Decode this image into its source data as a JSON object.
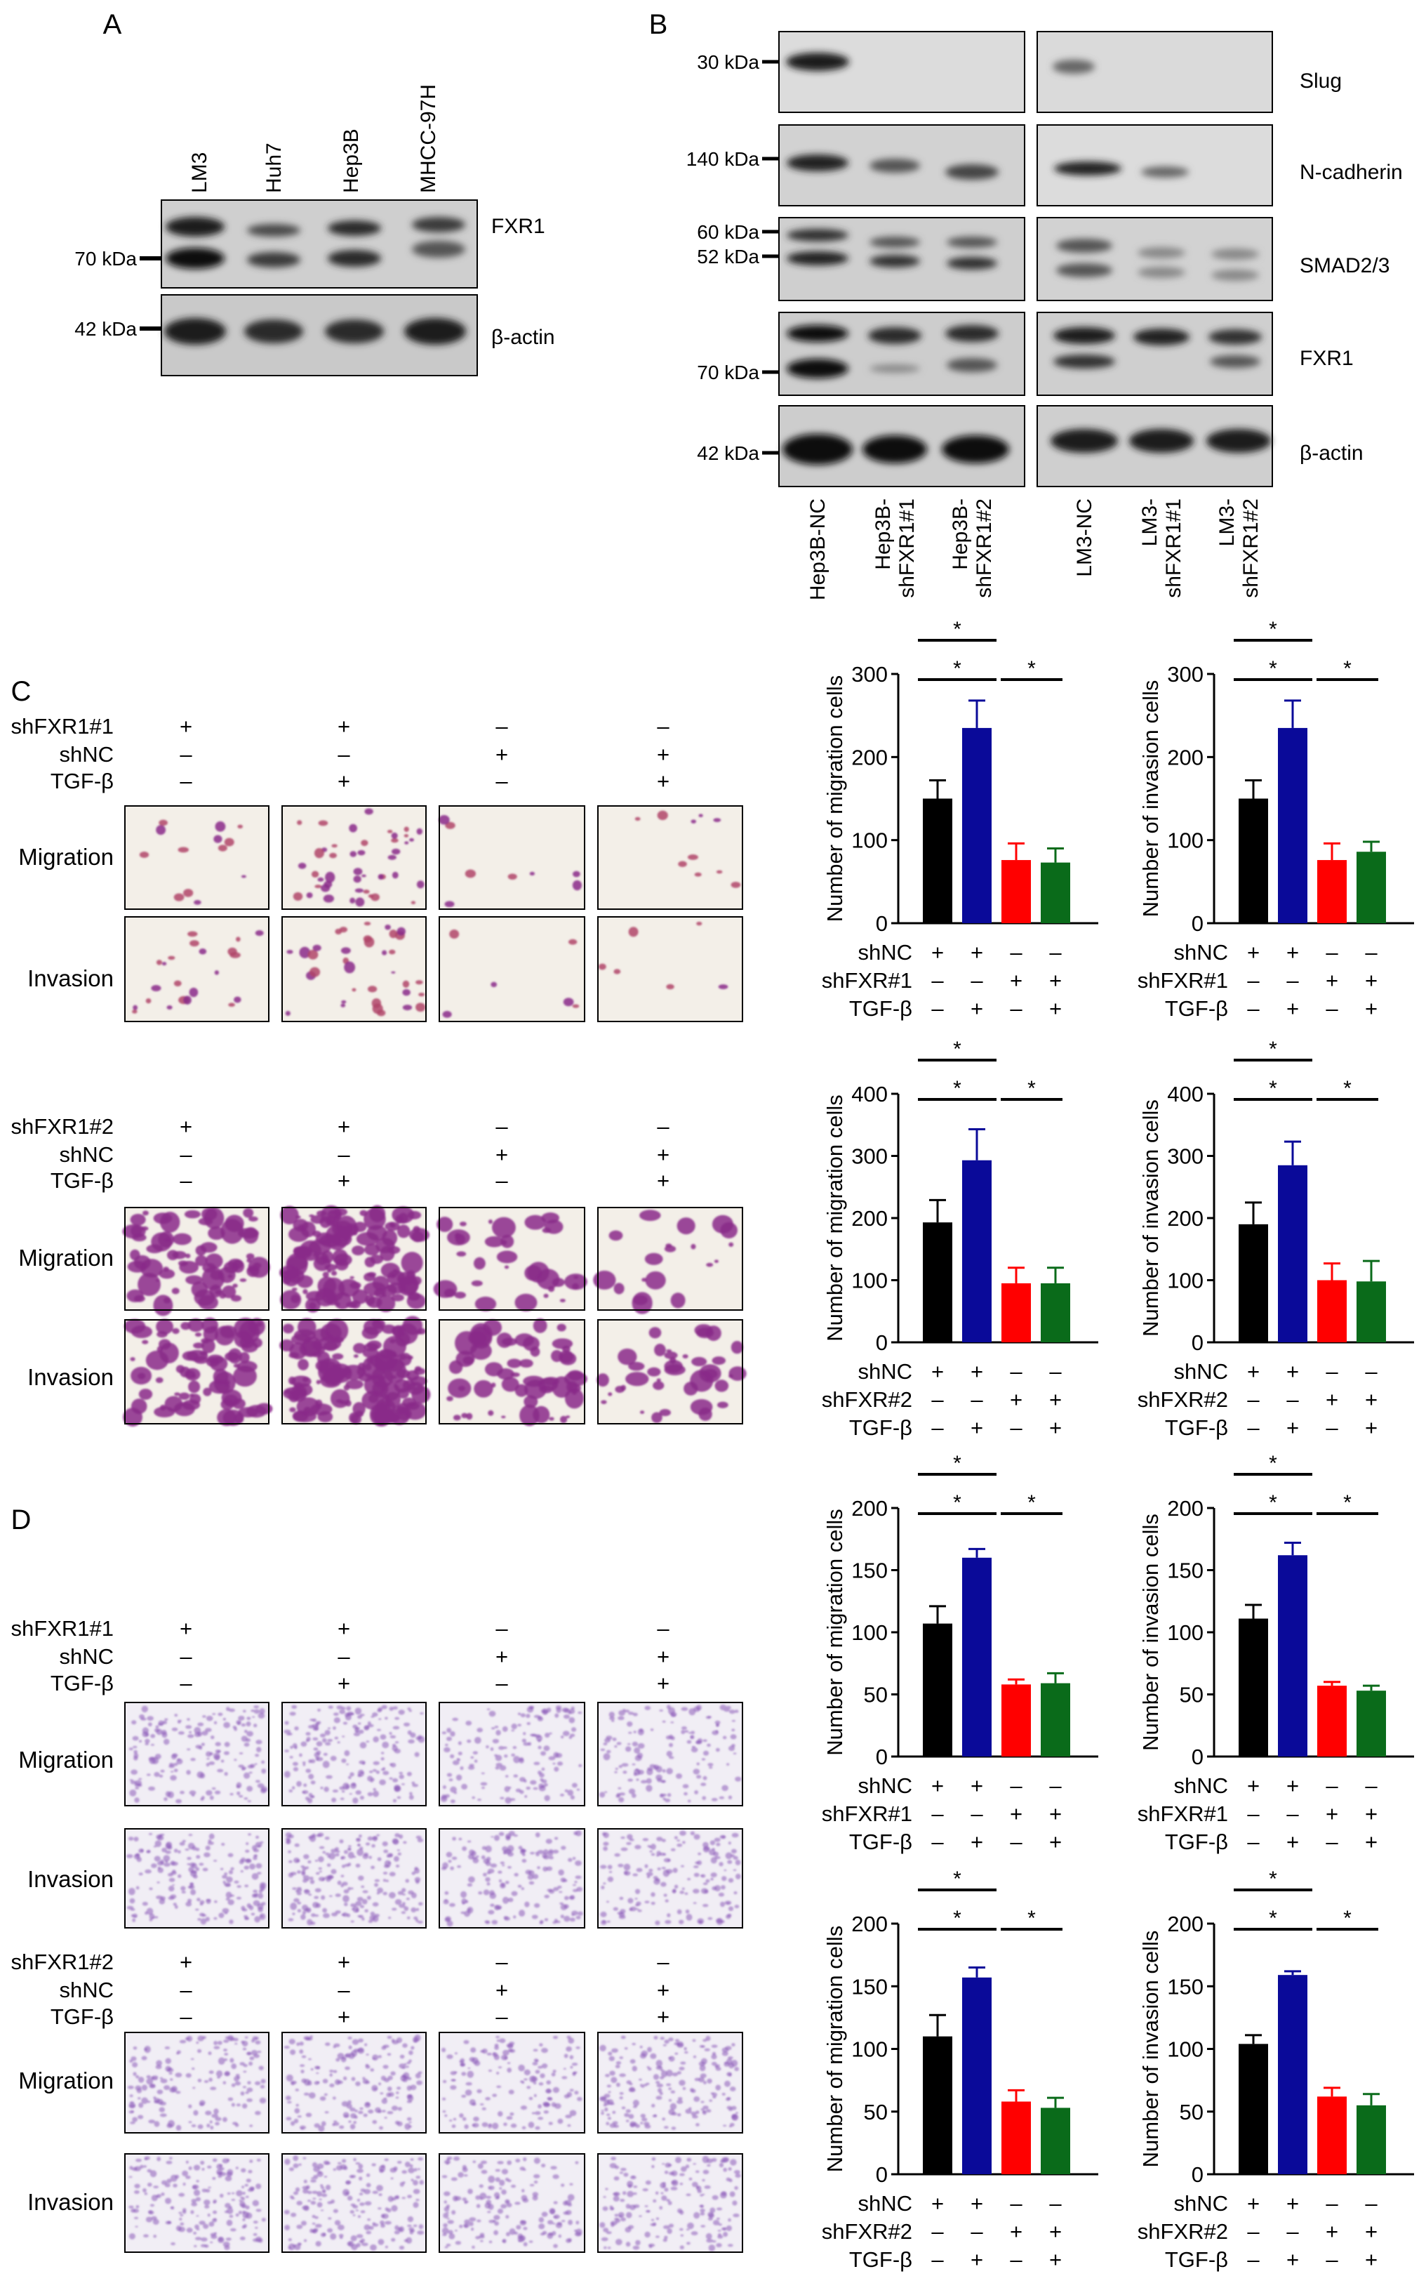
{
  "panel_letters": [
    "A",
    "B",
    "C",
    "D"
  ],
  "blot_a": {
    "lanes": [
      "LM3",
      "Huh7",
      "Hep3B",
      "MHCC-97H"
    ],
    "rows": [
      {
        "kda": "70 kDa",
        "protein": "FXR1"
      },
      {
        "kda": "42 kDa",
        "protein": "β-actin"
      }
    ]
  },
  "blot_b": {
    "rows": [
      {
        "kda": [
          "30 kDa"
        ],
        "protein": "Slug"
      },
      {
        "kda": [
          "140 kDa"
        ],
        "protein": "N-cadherin"
      },
      {
        "kda": [
          "60 kDa",
          "52 kDa"
        ],
        "protein": "SMAD2/3"
      },
      {
        "kda": [
          "70 kDa"
        ],
        "protein": "FXR1"
      },
      {
        "kda": [
          "42 kDa"
        ],
        "protein": "β-actin"
      }
    ],
    "lanes_left": [
      "Hep3B-NC",
      "Hep3B-\nshFXR1#1",
      "Hep3B-\nshFXR1#2"
    ],
    "lanes_right": [
      "LM3-NC",
      "LM3-\nshFXR1#1",
      "LM3-\nshFXR1#2"
    ]
  },
  "image_grids": [
    {
      "rows": [
        {
          "label": "shFXR1#1",
          "signs": [
            "+",
            "+",
            "–",
            "–"
          ]
        },
        {
          "label": "shNC",
          "signs": [
            "–",
            "–",
            "+",
            "+"
          ]
        },
        {
          "label": "TGF-β",
          "signs": [
            "–",
            "+",
            "–",
            "+"
          ]
        }
      ],
      "image_rows": [
        "Migration",
        "Invasion"
      ],
      "density": [
        [
          0.08,
          0.28,
          0.05,
          0.06
        ],
        [
          0.14,
          0.22,
          0.04,
          0.04
        ]
      ]
    },
    {
      "rows": [
        {
          "label": "shFXR1#2",
          "signs": [
            "+",
            "+",
            "–",
            "–"
          ]
        },
        {
          "label": "shNC",
          "signs": [
            "–",
            "–",
            "+",
            "+"
          ]
        },
        {
          "label": "TGF-β",
          "signs": [
            "–",
            "+",
            "–",
            "+"
          ]
        }
      ],
      "image_rows": [
        "Migration",
        "Invasion"
      ],
      "density": [
        [
          0.45,
          0.8,
          0.22,
          0.12
        ],
        [
          0.5,
          0.85,
          0.35,
          0.25
        ]
      ]
    },
    {
      "rows": [
        {
          "label": "shFXR1#1",
          "signs": [
            "+",
            "+",
            "–",
            "–"
          ]
        },
        {
          "label": "shNC",
          "signs": [
            "–",
            "–",
            "+",
            "+"
          ]
        },
        {
          "label": "TGF-β",
          "signs": [
            "–",
            "+",
            "–",
            "+"
          ]
        }
      ],
      "image_rows": [
        "Migration",
        "Invasion"
      ],
      "density": [
        [
          0.4,
          0.45,
          0.35,
          0.35
        ],
        [
          0.45,
          0.5,
          0.38,
          0.38
        ]
      ]
    },
    {
      "rows": [
        {
          "label": "shFXR1#2",
          "signs": [
            "+",
            "+",
            "–",
            "–"
          ]
        },
        {
          "label": "shNC",
          "signs": [
            "–",
            "–",
            "+",
            "+"
          ]
        },
        {
          "label": "TGF-β",
          "signs": [
            "–",
            "+",
            "–",
            "+"
          ]
        }
      ],
      "image_rows": [
        "Migration",
        "Invasion"
      ],
      "density": [
        [
          0.38,
          0.42,
          0.35,
          0.45
        ],
        [
          0.42,
          0.45,
          0.38,
          0.4
        ]
      ]
    }
  ],
  "colors": {
    "bars": [
      "#000000",
      "#0a0a99",
      "#ff0000",
      "#0a6b1a"
    ],
    "stain": "#8a2a9a"
  },
  "chart_data": [
    {
      "type": "bar",
      "ylabel": "Number of migration cells",
      "ylim": [
        0,
        300
      ],
      "yticks": [
        0,
        100,
        200,
        300
      ],
      "values": [
        150,
        235,
        76,
        73
      ],
      "errors": [
        22,
        33,
        20,
        17
      ],
      "sig": [
        "*",
        "*",
        "*"
      ],
      "group_rows": [
        {
          "label": "shNC",
          "signs": [
            "+",
            "+",
            "–",
            "–"
          ]
        },
        {
          "label": "shFXR#1",
          "signs": [
            "–",
            "–",
            "+",
            "+"
          ]
        },
        {
          "label": "TGF-β",
          "signs": [
            "–",
            "+",
            "–",
            "+"
          ]
        }
      ]
    },
    {
      "type": "bar",
      "ylabel": "Number of invasion cells",
      "ylim": [
        0,
        300
      ],
      "yticks": [
        0,
        100,
        200,
        300
      ],
      "values": [
        150,
        235,
        76,
        86
      ],
      "errors": [
        22,
        33,
        20,
        12
      ],
      "sig": [
        "*",
        "*",
        "*"
      ],
      "group_rows": [
        {
          "label": "shNC",
          "signs": [
            "+",
            "+",
            "–",
            "–"
          ]
        },
        {
          "label": "shFXR#1",
          "signs": [
            "–",
            "–",
            "+",
            "+"
          ]
        },
        {
          "label": "TGF-β",
          "signs": [
            "–",
            "+",
            "–",
            "+"
          ]
        }
      ]
    },
    {
      "type": "bar",
      "ylabel": "Number of migration cells",
      "ylim": [
        0,
        400
      ],
      "yticks": [
        0,
        100,
        200,
        300,
        400
      ],
      "values": [
        193,
        293,
        95,
        95
      ],
      "errors": [
        36,
        50,
        25,
        25
      ],
      "sig": [
        "*",
        "*",
        "*"
      ],
      "group_rows": [
        {
          "label": "shNC",
          "signs": [
            "+",
            "+",
            "–",
            "–"
          ]
        },
        {
          "label": "shFXR#2",
          "signs": [
            "–",
            "–",
            "+",
            "+"
          ]
        },
        {
          "label": "TGF-β",
          "signs": [
            "–",
            "+",
            "–",
            "+"
          ]
        }
      ]
    },
    {
      "type": "bar",
      "ylabel": "Number of invasion cells",
      "ylim": [
        0,
        400
      ],
      "yticks": [
        0,
        100,
        200,
        300,
        400
      ],
      "values": [
        190,
        285,
        100,
        98
      ],
      "errors": [
        35,
        38,
        27,
        33
      ],
      "sig": [
        "*",
        "*",
        "*"
      ],
      "group_rows": [
        {
          "label": "shNC",
          "signs": [
            "+",
            "+",
            "–",
            "–"
          ]
        },
        {
          "label": "shFXR#2",
          "signs": [
            "–",
            "–",
            "+",
            "+"
          ]
        },
        {
          "label": "TGF-β",
          "signs": [
            "–",
            "+",
            "–",
            "+"
          ]
        }
      ]
    },
    {
      "type": "bar",
      "ylabel": "Number of migration cells",
      "ylim": [
        0,
        200
      ],
      "yticks": [
        0,
        50,
        100,
        150,
        200
      ],
      "values": [
        107,
        160,
        58,
        59
      ],
      "errors": [
        14,
        7,
        4,
        8
      ],
      "sig": [
        "*",
        "*",
        "*"
      ],
      "group_rows": [
        {
          "label": "shNC",
          "signs": [
            "+",
            "+",
            "–",
            "–"
          ]
        },
        {
          "label": "shFXR#1",
          "signs": [
            "–",
            "–",
            "+",
            "+"
          ]
        },
        {
          "label": "TGF-β",
          "signs": [
            "–",
            "+",
            "–",
            "+"
          ]
        }
      ]
    },
    {
      "type": "bar",
      "ylabel": "Number of invasion cells",
      "ylim": [
        0,
        200
      ],
      "yticks": [
        0,
        50,
        100,
        150,
        200
      ],
      "values": [
        111,
        162,
        57,
        53
      ],
      "errors": [
        11,
        10,
        3,
        4
      ],
      "sig": [
        "*",
        "*",
        "*"
      ],
      "group_rows": [
        {
          "label": "shNC",
          "signs": [
            "+",
            "+",
            "–",
            "–"
          ]
        },
        {
          "label": "shFXR#1",
          "signs": [
            "–",
            "–",
            "+",
            "+"
          ]
        },
        {
          "label": "TGF-β",
          "signs": [
            "–",
            "+",
            "–",
            "+"
          ]
        }
      ]
    },
    {
      "type": "bar",
      "ylabel": "Number of migration cells",
      "ylim": [
        0,
        200
      ],
      "yticks": [
        0,
        50,
        100,
        150,
        200
      ],
      "values": [
        110,
        157,
        58,
        53
      ],
      "errors": [
        17,
        8,
        9,
        8
      ],
      "sig": [
        "*",
        "*",
        "*"
      ],
      "group_rows": [
        {
          "label": "shNC",
          "signs": [
            "+",
            "+",
            "–",
            "–"
          ]
        },
        {
          "label": "shFXR#2",
          "signs": [
            "–",
            "–",
            "+",
            "+"
          ]
        },
        {
          "label": "TGF-β",
          "signs": [
            "–",
            "+",
            "–",
            "+"
          ]
        }
      ]
    },
    {
      "type": "bar",
      "ylabel": "Number of invasion cells",
      "ylim": [
        0,
        200
      ],
      "yticks": [
        0,
        50,
        100,
        150,
        200
      ],
      "values": [
        104,
        159,
        62,
        55
      ],
      "errors": [
        7,
        3,
        7,
        9
      ],
      "sig": [
        "*",
        "*",
        "*"
      ],
      "group_rows": [
        {
          "label": "shNC",
          "signs": [
            "+",
            "+",
            "–",
            "–"
          ]
        },
        {
          "label": "shFXR#2",
          "signs": [
            "–",
            "–",
            "+",
            "+"
          ]
        },
        {
          "label": "TGF-β",
          "signs": [
            "–",
            "+",
            "–",
            "+"
          ]
        }
      ]
    }
  ]
}
